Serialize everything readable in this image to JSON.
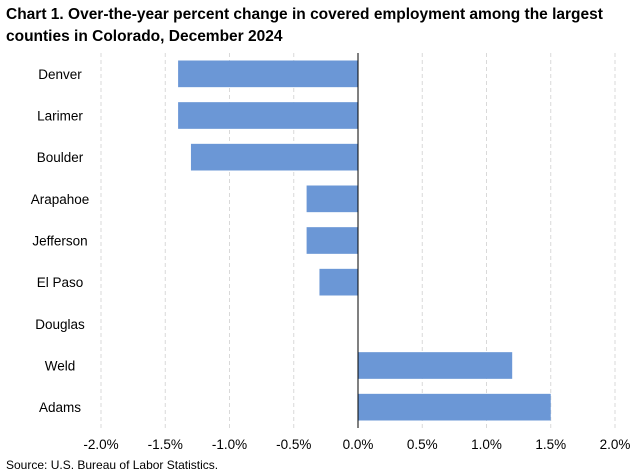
{
  "chart_data": {
    "type": "bar",
    "orientation": "horizontal",
    "title": "Chart 1. Over-the-year percent change in covered employment among the largest counties in Colorado, December 2024",
    "categories": [
      "Denver",
      "Larimer",
      "Boulder",
      "Arapahoe",
      "Jefferson",
      "El Paso",
      "Douglas",
      "Weld",
      "Adams"
    ],
    "values": [
      -1.4,
      -1.4,
      -1.3,
      -0.4,
      -0.4,
      -0.3,
      0.0,
      1.2,
      1.5
    ],
    "xlim": [
      -2.0,
      2.0
    ],
    "x_ticks": [
      -2.0,
      -1.5,
      -1.0,
      -0.5,
      0.0,
      0.5,
      1.0,
      1.5,
      2.0
    ],
    "x_tick_labels": [
      "-2.0%",
      "-1.5%",
      "-1.0%",
      "-0.5%",
      "0.0%",
      "0.5%",
      "1.0%",
      "1.5%",
      "2.0%"
    ],
    "grid": "vertical dashed",
    "bar_color": "#6b97d6",
    "source": "Source: U.S. Bureau of Labor Statistics."
  }
}
